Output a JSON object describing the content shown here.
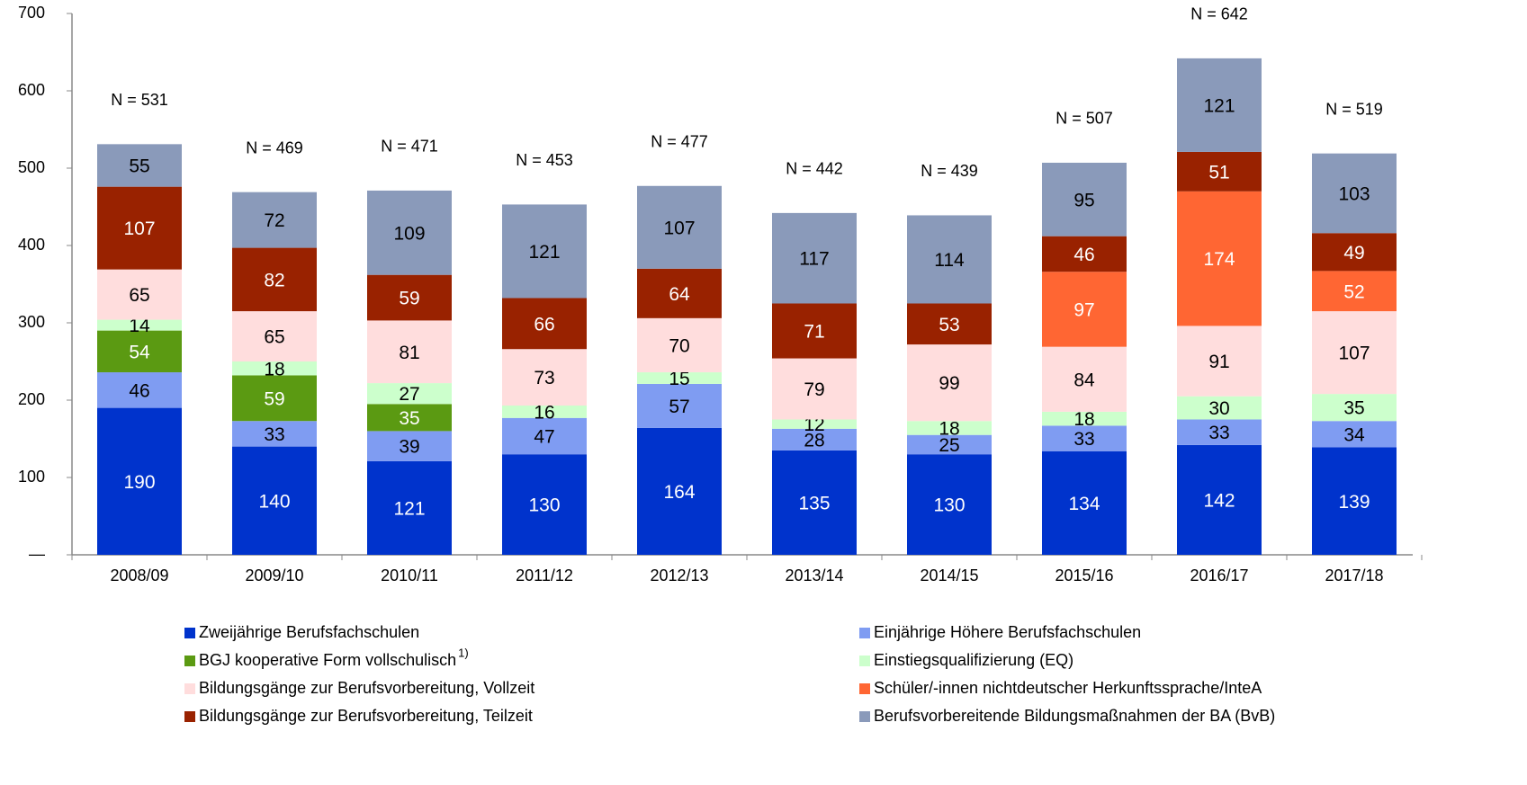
{
  "chart_data": {
    "type": "stacked_bar",
    "categories": [
      "2008/09",
      "2009/10",
      "2010/11",
      "2011/12",
      "2012/13",
      "2013/14",
      "2014/15",
      "2015/16",
      "2016/17",
      "2017/18"
    ],
    "series": [
      {
        "name": "Zweijährige Berufsfachschulen",
        "color": "#0033cc",
        "text_color": "#ffffff",
        "values": [
          190,
          140,
          121,
          130,
          164,
          135,
          130,
          134,
          142,
          139
        ]
      },
      {
        "name": "Einjährige Höhere Berufsfachschulen",
        "color": "#7f9cf2",
        "text_color": "#000000",
        "values": [
          46,
          33,
          39,
          47,
          57,
          28,
          25,
          33,
          33,
          34
        ]
      },
      {
        "name": "BGJ kooperative Form vollschulisch",
        "name_superscript": "1)",
        "color": "#5b9a12",
        "text_color": "#ffffff",
        "values": [
          54,
          59,
          35,
          null,
          null,
          null,
          null,
          null,
          null,
          null
        ]
      },
      {
        "name": "Einstiegsqualifizierung (EQ)",
        "color": "#ccffcc",
        "text_color": "#000000",
        "values": [
          14,
          18,
          27,
          16,
          15,
          12,
          18,
          18,
          30,
          35
        ]
      },
      {
        "name": "Bildungsgänge zur Berufsvorbereitung, Vollzeit",
        "color": "#ffdddd",
        "text_color": "#000000",
        "values": [
          65,
          65,
          81,
          73,
          70,
          79,
          99,
          84,
          91,
          107
        ]
      },
      {
        "name": "Schüler/-innen nichtdeutscher Herkunftssprache/InteA",
        "color": "#ff6633",
        "text_color": "#ffffff",
        "values": [
          null,
          null,
          null,
          null,
          null,
          null,
          null,
          97,
          174,
          52
        ]
      },
      {
        "name": "Bildungsgänge zur Berufsvorbereitung, Teilzeit",
        "color": "#992200",
        "text_color": "#ffffff",
        "values": [
          107,
          82,
          59,
          66,
          64,
          71,
          53,
          46,
          51,
          49
        ]
      },
      {
        "name": "Berufsvorbereitende Bildungsmaßnahmen der BA (BvB)",
        "color": "#8a9aba",
        "text_color": "#000000",
        "values": [
          55,
          72,
          109,
          121,
          107,
          117,
          114,
          95,
          121,
          103
        ]
      }
    ],
    "annotations": [
      "N = 531",
      "N = 469",
      "N = 471",
      "N = 453",
      "N = 477",
      "N = 442",
      "N = 439",
      "N = 507",
      "N = 642",
      "N = 519"
    ],
    "ylim": [
      0,
      700
    ],
    "yticks": [
      {
        "value": 0,
        "label": "—"
      },
      100,
      200,
      300,
      400,
      500,
      600,
      700
    ],
    "grid": false
  }
}
